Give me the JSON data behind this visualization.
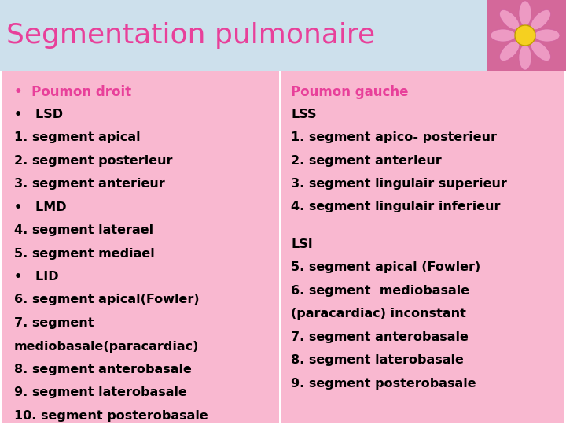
{
  "title": "Segmentation pulmonaire",
  "title_color": "#e8409a",
  "title_fontsize": 26,
  "bg_color": "#ffffff",
  "header_bg": "#dce8f0",
  "panel_color": "#f9b8d0",
  "left_lines": [
    {
      "text": "•  Poumon droit",
      "bold": true,
      "color": "#e8409a"
    },
    {
      "text": "•   LSD",
      "bold": false,
      "color": "#000000"
    },
    {
      "text": "1. segment apical",
      "bold": false,
      "color": "#000000"
    },
    {
      "text": "2. segment posterieur",
      "bold": false,
      "color": "#000000"
    },
    {
      "text": "3. segment anterieur",
      "bold": false,
      "color": "#000000"
    },
    {
      "text": "•   LMD",
      "bold": false,
      "color": "#000000"
    },
    {
      "text": "4. segment laterael",
      "bold": false,
      "color": "#000000"
    },
    {
      "text": "5. segment mediael",
      "bold": false,
      "color": "#000000"
    },
    {
      "text": "•   LID",
      "bold": false,
      "color": "#000000"
    },
    {
      "text": "6. segment apical(Fowler)",
      "bold": false,
      "color": "#000000"
    },
    {
      "text": "7. segment",
      "bold": false,
      "color": "#000000"
    },
    {
      "text": "mediobasale(paracardiac)",
      "bold": false,
      "color": "#000000"
    },
    {
      "text": "8. segment anterobasale",
      "bold": false,
      "color": "#000000"
    },
    {
      "text": "9. segment laterobasale",
      "bold": false,
      "color": "#000000"
    },
    {
      "text": "10. segment posterobasale",
      "bold": false,
      "color": "#000000"
    }
  ],
  "right_lines": [
    {
      "text": "Poumon gauche",
      "bold": true,
      "color": "#e8409a"
    },
    {
      "text": "LSS",
      "bold": false,
      "color": "#000000"
    },
    {
      "text": "1. segment apico- posterieur",
      "bold": false,
      "color": "#000000"
    },
    {
      "text": "2. segment anterieur",
      "bold": false,
      "color": "#000000"
    },
    {
      "text": "3. segment lingulair superieur",
      "bold": false,
      "color": "#000000"
    },
    {
      "text": "4. segment lingulair inferieur",
      "bold": false,
      "color": "#000000"
    },
    {
      "text": "",
      "bold": false,
      "color": "#000000"
    },
    {
      "text": "LSI",
      "bold": false,
      "color": "#000000"
    },
    {
      "text": "5. segment apical (Fowler)",
      "bold": false,
      "color": "#000000"
    },
    {
      "text": "6. segment  mediobasale",
      "bold": false,
      "color": "#000000"
    },
    {
      "text": "(paracardiac) inconstant",
      "bold": false,
      "color": "#000000"
    },
    {
      "text": "7. segment anterobasale",
      "bold": false,
      "color": "#000000"
    },
    {
      "text": "8. segment laterobasale",
      "bold": false,
      "color": "#000000"
    },
    {
      "text": "9. segment posterobasale",
      "bold": false,
      "color": "#000000"
    }
  ]
}
